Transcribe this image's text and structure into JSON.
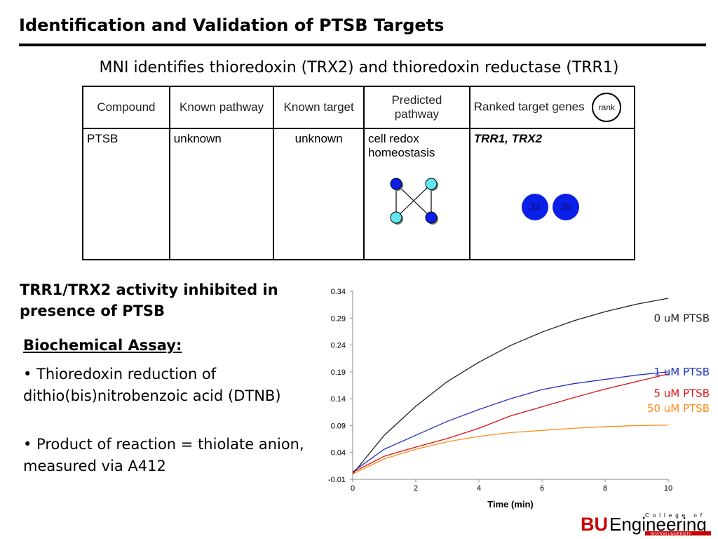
{
  "slide": {
    "title": "Identification and Validation of PTSB Targets",
    "subtitle": "MNI identifies thioredoxin (TRX2) and thioredoxin reductase (TRR1)"
  },
  "table": {
    "headers": [
      "Compound",
      "Known pathway",
      "Known target",
      "Predicted pathway",
      "Ranked target genes"
    ],
    "rank_badge": "rank",
    "row": {
      "compound": "PTSB",
      "known_pathway": "unknown",
      "known_target": "unknown",
      "predicted_pathway": "cell redox homeostasis",
      "ranked_genes": "TRR1, TRX2",
      "ranks": [
        "32",
        "36"
      ]
    },
    "network_colors": {
      "dark": "#0a1fe8",
      "light": "#5fe6f0"
    }
  },
  "left_panel": {
    "heading": "TRR1/TRX2 activity inhibited in presence of PTSB",
    "assay_heading": "Biochemical Assay:",
    "bullets": [
      "• Thioredoxin reduction of dithio(bis)nitrobenzoic acid (DTNB)",
      "• Product of reaction = thiolate anion, measured via A412"
    ]
  },
  "chart_data": {
    "type": "line",
    "xlabel": "Time (min)",
    "ylabel": "",
    "xlim": [
      0,
      10
    ],
    "ylim": [
      -0.01,
      0.34
    ],
    "x_ticks": [
      0,
      2,
      4,
      6,
      8,
      10
    ],
    "y_ticks": [
      -0.01,
      0.04,
      0.09,
      0.14,
      0.19,
      0.24,
      0.29,
      0.34
    ],
    "x": [
      0,
      1,
      2,
      3,
      4,
      5,
      6,
      7,
      8,
      9,
      10
    ],
    "series": [
      {
        "name": "0 uM PTSB",
        "color": "#222222",
        "values": [
          0.0,
          0.072,
          0.126,
          0.172,
          0.208,
          0.239,
          0.264,
          0.285,
          0.302,
          0.316,
          0.327
        ]
      },
      {
        "name": "1 uM PTSB",
        "color": "#2233bb",
        "values": [
          0.004,
          0.046,
          0.072,
          0.098,
          0.12,
          0.14,
          0.157,
          0.168,
          0.176,
          0.184,
          0.19
        ]
      },
      {
        "name": "5 uM PTSB",
        "color": "#dd1111",
        "values": [
          0.003,
          0.033,
          0.05,
          0.066,
          0.085,
          0.108,
          0.125,
          0.142,
          0.158,
          0.172,
          0.186
        ]
      },
      {
        "name": "50 uM PTSB",
        "color": "#ff8c1a",
        "values": [
          0.0,
          0.028,
          0.046,
          0.06,
          0.07,
          0.077,
          0.081,
          0.085,
          0.088,
          0.09,
          0.091
        ]
      }
    ]
  },
  "logo": {
    "main": "BUEngineering",
    "top_text": "College of",
    "bottom_text": "BOSTON UNIVERSITY"
  }
}
